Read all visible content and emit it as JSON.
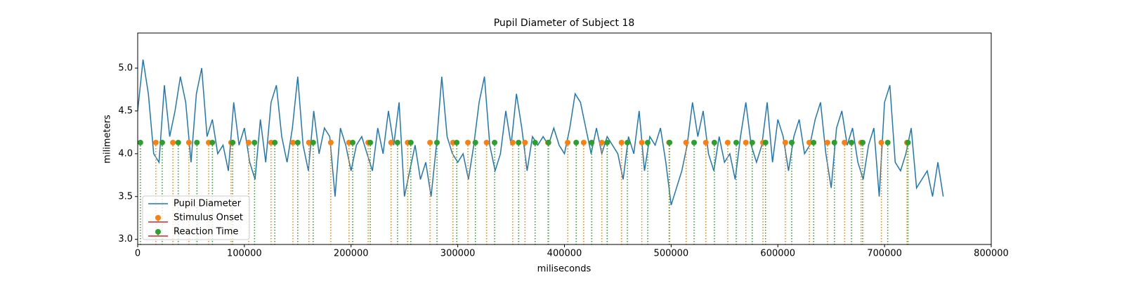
{
  "chart_data": {
    "type": "line",
    "title": "Pupil Diameter of Subject 18",
    "xlabel": "miliseconds",
    "ylabel": "milimeters",
    "xlim": [
      0,
      800000
    ],
    "ylim": [
      2.94,
      5.41
    ],
    "xticks": [
      0,
      100000,
      200000,
      300000,
      400000,
      500000,
      600000,
      700000,
      800000
    ],
    "yticks": [
      {
        "value": 3,
        "label": "3.0"
      },
      3.5,
      {
        "value": 4,
        "label": "4.0"
      },
      4.5,
      {
        "value": 5,
        "label": "5.0"
      }
    ],
    "grid": false,
    "legend": "lower left",
    "baseline_color": "#d62728",
    "series": [
      {
        "name": "Pupil Diameter",
        "type": "line",
        "color": "#1f77b4",
        "x": [
          0,
          5000,
          10000,
          15000,
          20000,
          25000,
          30000,
          35000,
          40000,
          45000,
          50000,
          55000,
          60000,
          65000,
          70000,
          75000,
          80000,
          85000,
          90000,
          95000,
          100000,
          105000,
          110000,
          115000,
          120000,
          125000,
          130000,
          135000,
          140000,
          145000,
          150000,
          155000,
          160000,
          165000,
          170000,
          175000,
          180000,
          185000,
          190000,
          195000,
          200000,
          205000,
          210000,
          215000,
          220000,
          225000,
          230000,
          235000,
          240000,
          245000,
          250000,
          255000,
          260000,
          265000,
          270000,
          275000,
          280000,
          285000,
          290000,
          295000,
          300000,
          305000,
          310000,
          315000,
          320000,
          325000,
          330000,
          335000,
          340000,
          345000,
          350000,
          355000,
          360000,
          365000,
          370000,
          375000,
          380000,
          385000,
          390000,
          395000,
          400000,
          405000,
          410000,
          415000,
          420000,
          425000,
          430000,
          435000,
          440000,
          445000,
          450000,
          455000,
          460000,
          465000,
          470000,
          475000,
          480000,
          485000,
          490000,
          495000,
          500000,
          505000,
          510000,
          515000,
          520000,
          525000,
          530000,
          535000,
          540000,
          545000,
          550000,
          555000,
          560000,
          565000,
          570000,
          575000,
          580000,
          585000,
          590000,
          595000,
          600000,
          605000,
          610000,
          615000,
          620000,
          625000,
          630000,
          635000,
          640000,
          645000,
          650000,
          655000,
          660000,
          665000,
          670000,
          675000,
          680000,
          685000,
          690000,
          695000,
          700000,
          705000,
          710000,
          715000,
          720000,
          725000,
          730000,
          735000,
          740000,
          745000,
          750000,
          755000
        ],
        "values": [
          4.5,
          5.1,
          4.7,
          4.0,
          3.9,
          4.8,
          4.2,
          4.5,
          4.9,
          4.6,
          3.9,
          4.7,
          5.0,
          4.2,
          4.4,
          4.0,
          4.1,
          3.8,
          4.6,
          4.1,
          4.3,
          3.9,
          3.7,
          4.4,
          3.9,
          4.6,
          4.8,
          4.2,
          3.9,
          4.3,
          4.9,
          4.1,
          3.8,
          4.5,
          4.0,
          4.3,
          4.2,
          3.5,
          4.3,
          4.1,
          3.8,
          4.1,
          4.2,
          4.0,
          3.8,
          4.3,
          4.0,
          4.5,
          4.1,
          4.6,
          3.5,
          3.8,
          4.1,
          3.7,
          3.9,
          3.5,
          4.1,
          4.9,
          4.2,
          4.0,
          3.9,
          4.0,
          3.7,
          4.1,
          4.6,
          4.9,
          4.1,
          3.8,
          4.0,
          4.5,
          4.1,
          4.7,
          4.3,
          3.8,
          4.2,
          4.1,
          4.2,
          4.1,
          4.3,
          4.1,
          4.0,
          4.3,
          4.7,
          4.6,
          4.3,
          4.0,
          4.3,
          4.0,
          4.2,
          4.1,
          4.0,
          3.7,
          4.2,
          4.0,
          4.5,
          3.8,
          4.2,
          4.1,
          4.3,
          3.9,
          3.4,
          3.6,
          3.8,
          4.1,
          4.6,
          4.2,
          4.5,
          4.0,
          3.8,
          4.2,
          3.9,
          4.0,
          3.7,
          4.2,
          4.6,
          4.1,
          3.9,
          4.1,
          4.6,
          3.9,
          4.4,
          4.2,
          3.8,
          4.2,
          4.4,
          4.0,
          4.1,
          4.4,
          4.6,
          4.0,
          3.6,
          4.3,
          4.5,
          4.1,
          4.3,
          3.9,
          3.7,
          4.1,
          4.3,
          3.5,
          4.6,
          4.8,
          3.9,
          3.8,
          4.0,
          4.3,
          3.6,
          3.7,
          3.8,
          3.5,
          3.9,
          3.5
        ]
      },
      {
        "name": "Stimulus Onset",
        "type": "stem",
        "color": "#ff7f0e",
        "x": [
          17000,
          33000,
          48000,
          66500,
          87500,
          104000,
          125000,
          145500,
          160500,
          181000,
          198000,
          216000,
          237500,
          253000,
          274000,
          295500,
          309500,
          327000,
          351500,
          363000,
          384500,
          403000,
          418000,
          435000,
          453500,
          472500,
          498000,
          514000,
          532500,
          553000,
          570000,
          586000,
          607000,
          629500,
          646500,
          662500,
          678000,
          697000,
          721000
        ],
        "values": [
          4.13,
          4.13,
          4.13,
          4.13,
          4.13,
          4.13,
          4.13,
          4.13,
          4.13,
          4.13,
          4.13,
          4.13,
          4.13,
          4.13,
          4.13,
          4.13,
          4.13,
          4.13,
          4.13,
          4.13,
          4.13,
          4.13,
          4.13,
          4.13,
          4.13,
          4.13,
          4.13,
          4.13,
          4.13,
          4.13,
          4.13,
          4.13,
          4.13,
          4.13,
          4.13,
          4.13,
          4.13,
          4.13,
          4.13
        ]
      },
      {
        "name": "Reaction Time",
        "type": "stem",
        "color": "#2ca02c",
        "x": [
          2500,
          23000,
          38000,
          55500,
          70000,
          89000,
          109500,
          128500,
          150000,
          164500,
          201500,
          218000,
          243500,
          256000,
          280500,
          299000,
          316500,
          334500,
          357000,
          372500,
          385000,
          411000,
          425500,
          440000,
          459000,
          478000,
          498500,
          521500,
          540500,
          561000,
          576000,
          588500,
          613000,
          633500,
          653000,
          669000,
          679500,
          703000,
          722000
        ],
        "values": [
          4.13,
          4.13,
          4.13,
          4.13,
          4.13,
          4.13,
          4.13,
          4.13,
          4.13,
          4.13,
          4.13,
          4.13,
          4.13,
          4.13,
          4.13,
          4.13,
          4.13,
          4.13,
          4.13,
          4.13,
          4.13,
          4.13,
          4.13,
          4.13,
          4.13,
          4.13,
          4.13,
          4.13,
          4.13,
          4.13,
          4.13,
          4.13,
          4.13,
          4.13,
          4.13,
          4.13,
          4.13,
          4.13,
          4.13
        ]
      }
    ]
  }
}
